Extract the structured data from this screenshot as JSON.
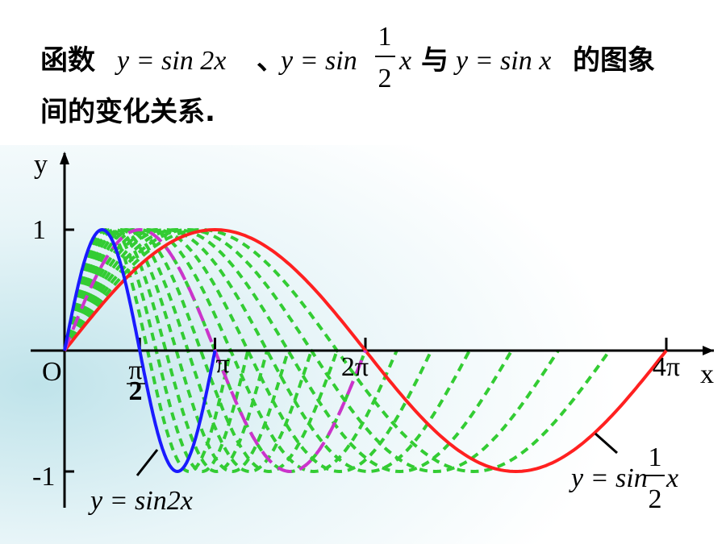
{
  "title": {
    "line1": {
      "lead": "函数",
      "f1": "y = sin 2x",
      "sep": "、",
      "f2_head": "y = sin",
      "f2_num": "1",
      "f2_den": "2",
      "f2_var": "x",
      "join": "与",
      "f3": "y = sin x",
      "tail": "的图象"
    },
    "line2": "间的变化关系."
  },
  "axes": {
    "x_label": "x",
    "y_label": "y",
    "origin": "O",
    "y_one": "1",
    "y_minus_one": "-1",
    "half_pi_num": "π",
    "half_pi_den": "2",
    "pi": "π",
    "two_pi": "2π",
    "four_pi": "4π"
  },
  "labels": {
    "sin2x": "y = sin2x",
    "half_head": "y = sin",
    "half_num": "1",
    "half_den": "2",
    "half_var": "x"
  }
}
